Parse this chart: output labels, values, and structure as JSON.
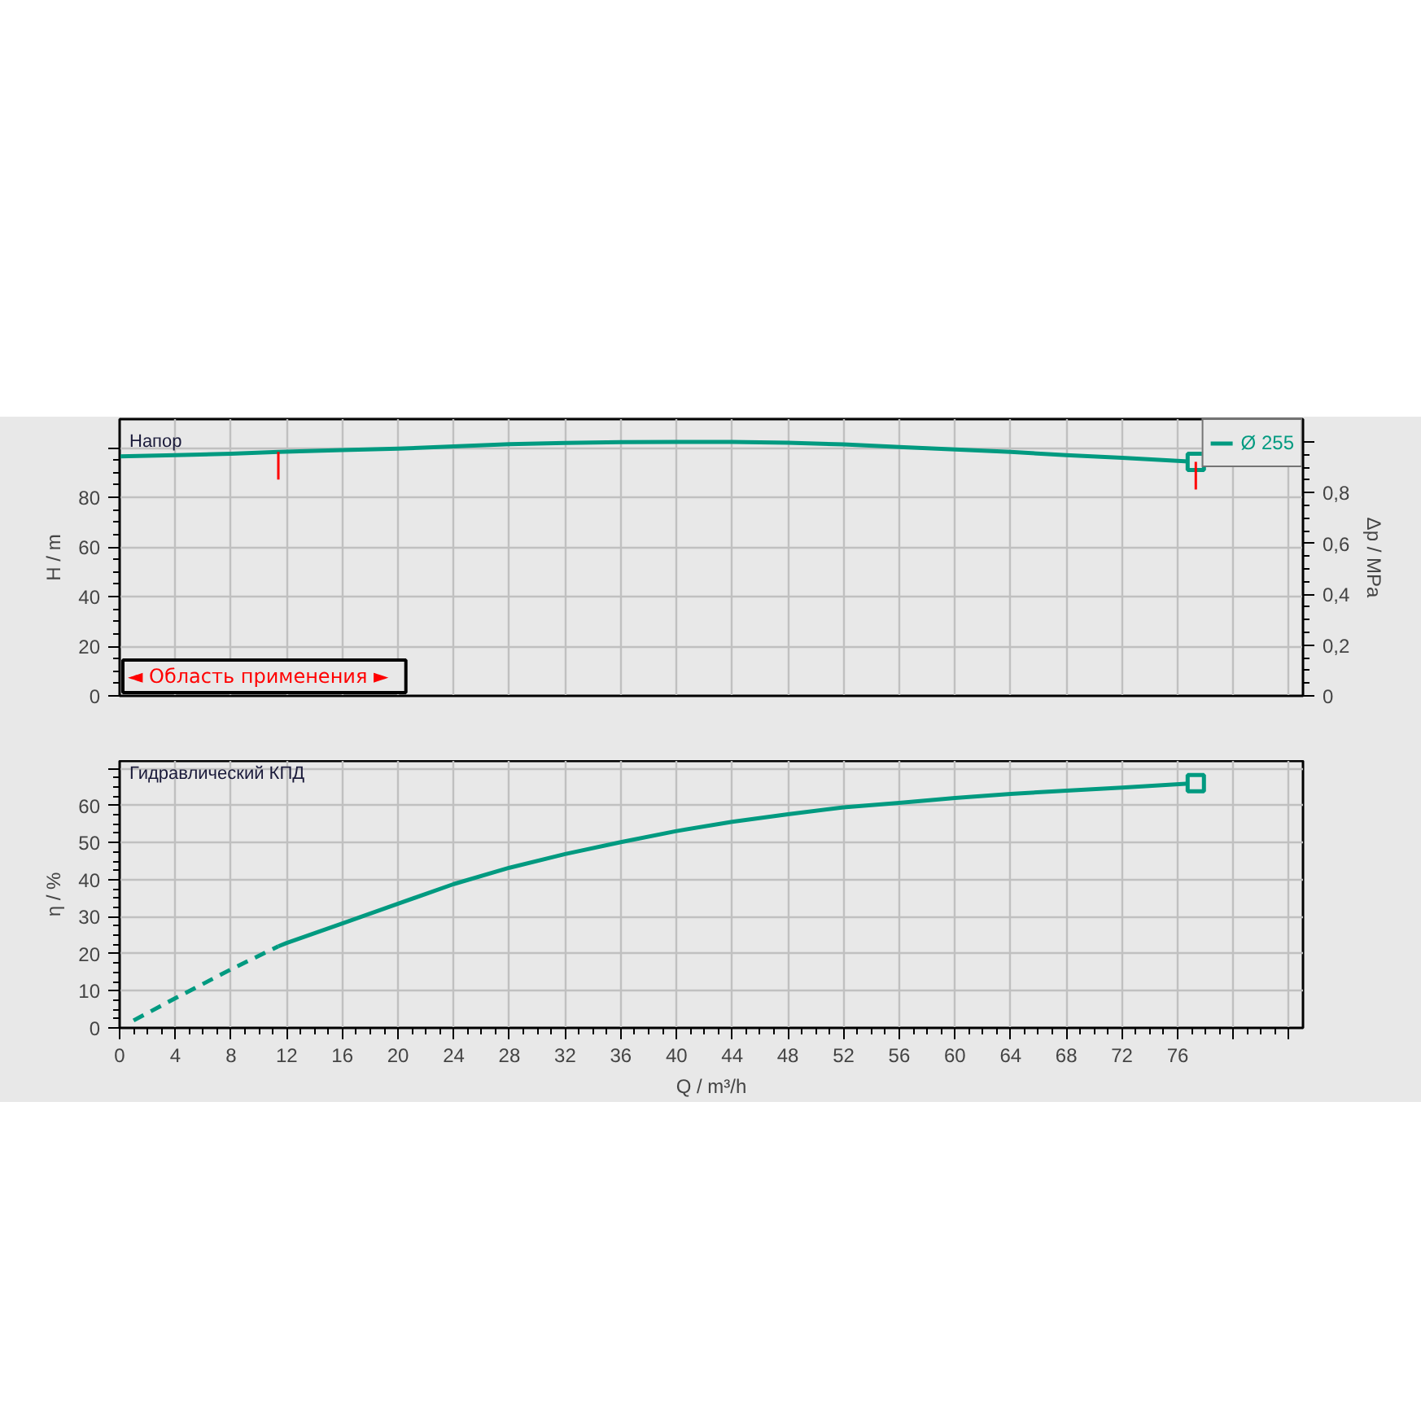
{
  "chart_data": [
    {
      "type": "line",
      "ylabel": "H / m",
      "y2label": "Δp / MPa",
      "annotations": [
        "Напор",
        "◄ Область применения ►"
      ],
      "xlim": [
        0,
        85
      ],
      "xticks": [
        0,
        4,
        8,
        12,
        16,
        20,
        24,
        28,
        32,
        36,
        40,
        44,
        48,
        52,
        56,
        60,
        64,
        68,
        72,
        76,
        80,
        84
      ],
      "ylim": [
        0,
        111.5
      ],
      "yticks": [
        0,
        20,
        40,
        60,
        80,
        {
          "value": 100,
          "label": null
        }
      ],
      "y2lim": [
        0,
        1.09
      ],
      "y2ticks": [
        0,
        {
          "value": 0.2,
          "label": "0,2"
        },
        {
          "value": 0.4,
          "label": "0,4"
        },
        {
          "value": 0.6,
          "label": "0,6"
        },
        {
          "value": 0.8,
          "label": "0,8"
        },
        {
          "value": 1.0,
          "label": null
        }
      ],
      "tick_labels": "y",
      "grid": true,
      "legend": "top right",
      "series": [
        {
          "name": "Ø 255",
          "color": "#009a80",
          "x": [
            0,
            4,
            8,
            11.4,
            16,
            20,
            24,
            28,
            32,
            36,
            40,
            44,
            48,
            52,
            56,
            60,
            64,
            68,
            72,
            77.3
          ],
          "values": [
            96.5,
            97.0,
            97.6,
            98.3,
            99.0,
            99.6,
            100.5,
            101.4,
            101.9,
            102.2,
            102.3,
            102.3,
            102.0,
            101.3,
            100.3,
            99.3,
            98.3,
            97.0,
            95.9,
            94.3
          ]
        },
        {
          "type": "scatter",
          "marker": "square",
          "color": "#009a80",
          "x": [
            77.3
          ],
          "values": [
            94.3
          ]
        }
      ],
      "ref_lines": [
        {
          "axis": "x",
          "value": 11.4,
          "color": "#ff0000"
        },
        {
          "axis": "x",
          "value": 77.3,
          "color": "#ff0000"
        }
      ]
    },
    {
      "type": "line",
      "xlabel": "Q / m³/h",
      "ylabel": "η / %",
      "annotations": [
        "Гидравлический КПД"
      ],
      "xlim": [
        0,
        85
      ],
      "xticks": [
        0,
        4,
        8,
        12,
        16,
        20,
        24,
        28,
        32,
        36,
        40,
        44,
        48,
        52,
        56,
        60,
        64,
        68,
        72,
        76,
        {
          "value": 80,
          "label": null
        },
        {
          "value": 84,
          "label": null
        }
      ],
      "ylim": [
        0,
        72
      ],
      "yticks": [
        0,
        10,
        20,
        30,
        40,
        50,
        60,
        {
          "value": 70,
          "label": null
        }
      ],
      "grid": true,
      "series": [
        {
          "color": "#009a80",
          "line_style": "dashed",
          "x": [
            1,
            4,
            8,
            11.4
          ],
          "values": [
            2.0,
            8.0,
            15.8,
            22.0
          ]
        },
        {
          "color": "#009a80",
          "x": [
            11.4,
            12,
            16,
            20,
            24,
            28,
            32,
            36,
            40,
            44,
            48,
            52,
            56,
            60,
            64,
            68,
            72,
            77.3
          ],
          "values": [
            22.0,
            22.9,
            28.2,
            33.5,
            38.8,
            43.2,
            46.9,
            50.1,
            53.1,
            55.6,
            57.6,
            59.5,
            60.7,
            62.0,
            63.1,
            64.0,
            64.8,
            66.0
          ]
        },
        {
          "type": "scatter",
          "marker": "square",
          "color": "#009a80",
          "x": [
            77.3
          ],
          "values": [
            66.0
          ]
        }
      ]
    }
  ]
}
